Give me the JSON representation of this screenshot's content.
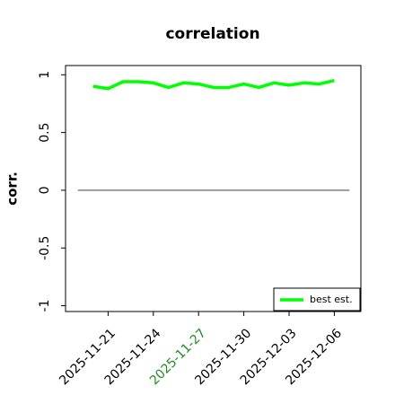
{
  "chart_data": {
    "type": "line",
    "title": "correlation",
    "ylabel": "corr.",
    "x": [
      "2025-11-20",
      "2025-11-21",
      "2025-11-22",
      "2025-11-23",
      "2025-11-24",
      "2025-11-25",
      "2025-11-26",
      "2025-11-27",
      "2025-11-28",
      "2025-11-29",
      "2025-11-30",
      "2025-12-01",
      "2025-12-02",
      "2025-12-03",
      "2025-12-04",
      "2025-12-05",
      "2025-12-06"
    ],
    "series": [
      {
        "name": "best est.",
        "color": "#00ff00",
        "values": [
          0.9,
          0.88,
          0.94,
          0.94,
          0.93,
          0.89,
          0.93,
          0.92,
          0.89,
          0.89,
          0.92,
          0.89,
          0.93,
          0.91,
          0.93,
          0.92,
          0.95
        ]
      }
    ],
    "reference_line": {
      "y": 0,
      "x": [
        "2025-11-19",
        "2025-12-07"
      ],
      "color": "#555555"
    },
    "xlim": [
      "2025-11-18",
      "2025-12-08"
    ],
    "xticks": [
      "2025-11-21",
      "2025-11-24",
      "2025-11-27",
      "2025-11-30",
      "2025-12-03",
      "2025-12-06"
    ],
    "xtick_label_colors": [
      "#000000",
      "#000000",
      "#228b22",
      "#000000",
      "#000000",
      "#000000"
    ],
    "ylim": [
      -1.05,
      1.08
    ],
    "yticks": [
      -1.0,
      -0.5,
      0.0,
      0.5,
      1.0
    ],
    "legend": "lower right"
  }
}
